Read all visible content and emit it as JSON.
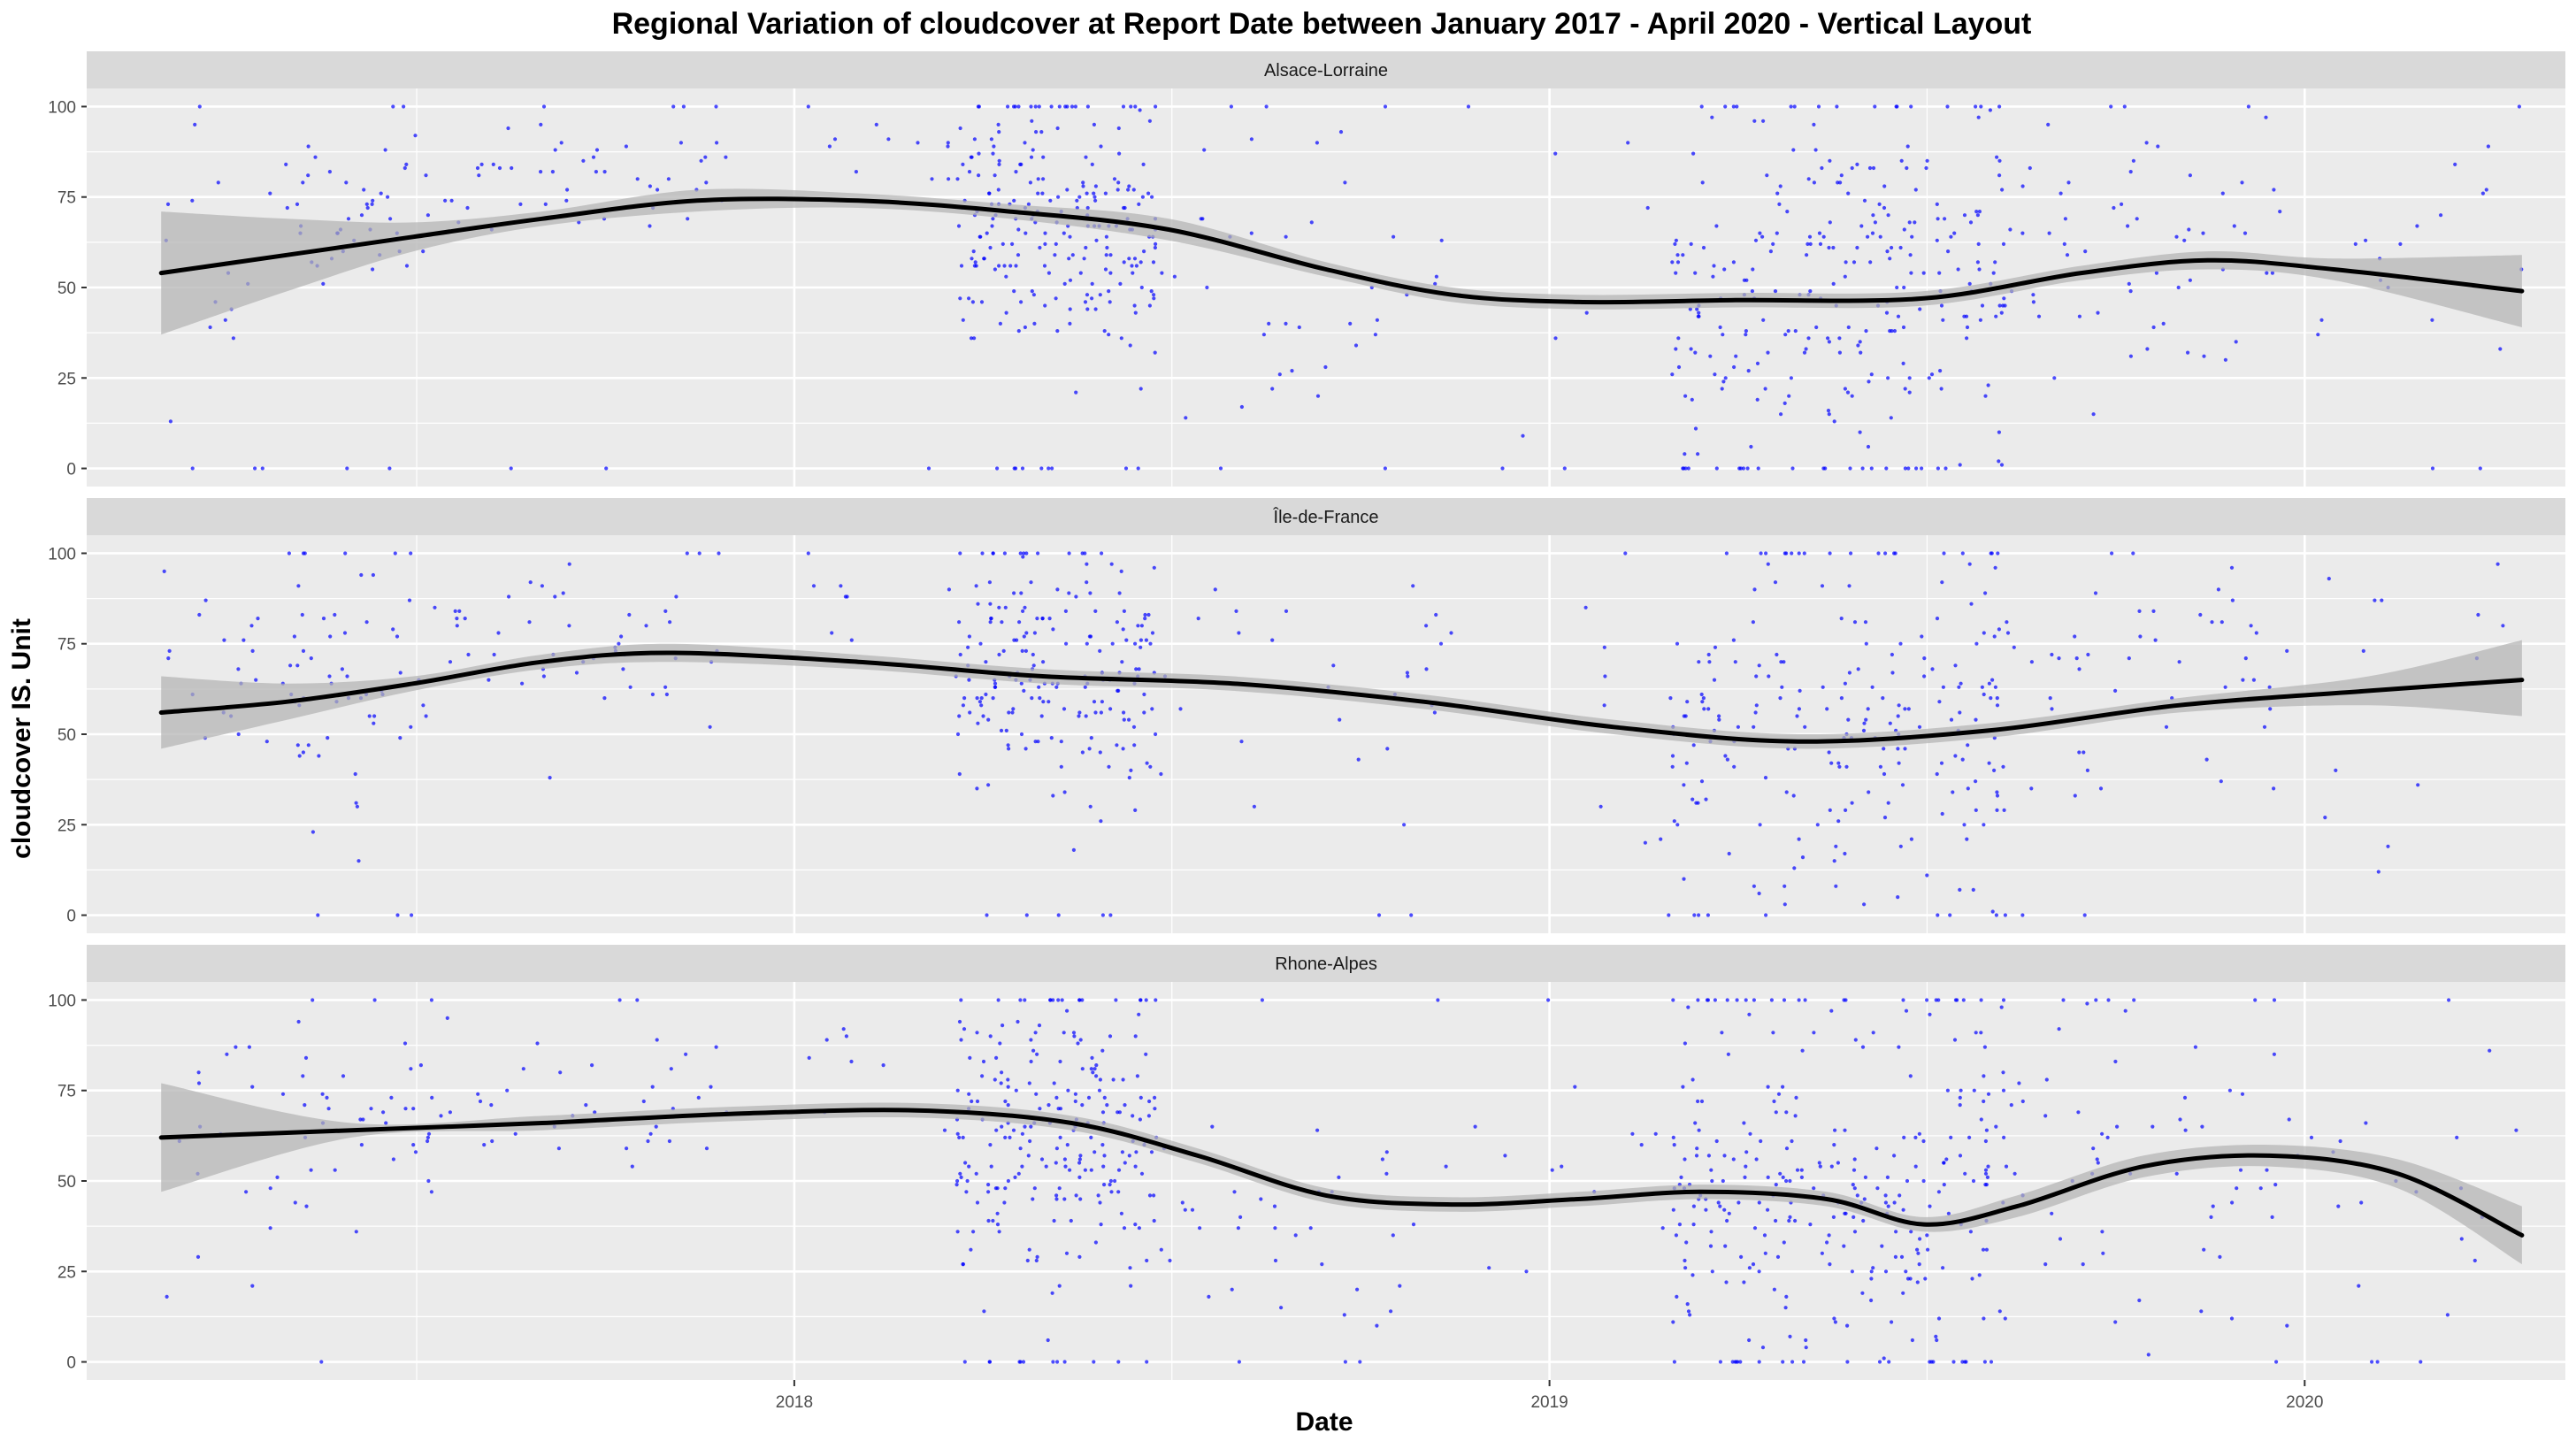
{
  "chart_data": {
    "type": "scatter",
    "title": "Regional Variation of  cloudcover  at Report Date between January 2017 - April 2020 - Vertical Layout",
    "xlabel": "Date",
    "ylabel": "cloudcover  IS. Unit",
    "xlim": [
      "2017-01-24",
      "2020-05-06"
    ],
    "ylim": [
      -5,
      105
    ],
    "x_ticks": [
      "2018-01-01",
      "2019-01-01",
      "2020-01-01"
    ],
    "x_tick_labels": [
      "2018",
      "2019",
      "2020"
    ],
    "y_ticks": [
      0,
      25,
      50,
      75,
      100
    ],
    "y_tick_labels": [
      "0",
      "25",
      "50",
      "75",
      "100"
    ],
    "grid": true,
    "legend": "none",
    "colors": {
      "points": "#0000ff",
      "smooth_line": "#000000",
      "ribbon": "#b3b3b3",
      "panel_bg": "#ebebeb",
      "strip_bg": "#d9d9d9",
      "grid": "#ffffff"
    },
    "panels": [
      {
        "name": "Alsace-Lorraine",
        "smooth": {
          "x": [
            "2017-03-01",
            "2017-05-01",
            "2017-07-01",
            "2017-09-01",
            "2017-11-15",
            "2018-02-01",
            "2018-04-15",
            "2018-07-01",
            "2018-09-15",
            "2018-11-15",
            "2019-01-15",
            "2019-04-01",
            "2019-07-01",
            "2019-09-15",
            "2019-11-15",
            "2020-01-15",
            "2020-04-15"
          ],
          "y": [
            54,
            59,
            64,
            69,
            74,
            74,
            71,
            66,
            55,
            48,
            46,
            46.5,
            47,
            54,
            57.5,
            55,
            49
          ],
          "lower": [
            37,
            49,
            60,
            67,
            71,
            72,
            69,
            63,
            53,
            46,
            44,
            44.5,
            45,
            52,
            55,
            52,
            39
          ],
          "upper": [
            71,
            69,
            68,
            71,
            77,
            76,
            73,
            69,
            57,
            50,
            48,
            48.5,
            49,
            56,
            60,
            58,
            59
          ]
        },
        "clusters": [
          {
            "start": "2017-03-01",
            "end": "2017-05-01",
            "center": 55,
            "spread": 35,
            "n": 20
          },
          {
            "start": "2017-05-01",
            "end": "2017-07-10",
            "center": 72,
            "spread": 25,
            "n": 45
          },
          {
            "start": "2017-07-10",
            "end": "2017-11-30",
            "center": 80,
            "spread": 15,
            "n": 50
          },
          {
            "start": "2018-01-01",
            "end": "2018-03-20",
            "center": 88,
            "spread": 10,
            "n": 12
          },
          {
            "start": "2018-03-20",
            "end": "2018-06-25",
            "center": 65,
            "spread": 30,
            "n": 240
          },
          {
            "start": "2018-06-25",
            "end": "2018-10-30",
            "center": 55,
            "spread": 35,
            "n": 40
          },
          {
            "start": "2018-11-01",
            "end": "2019-03-01",
            "center": 60,
            "spread": 40,
            "n": 12
          },
          {
            "start": "2019-03-01",
            "end": "2019-08-10",
            "center": 50,
            "spread": 50,
            "n": 280
          },
          {
            "start": "2019-08-10",
            "end": "2019-12-20",
            "center": 60,
            "spread": 40,
            "n": 60
          },
          {
            "start": "2019-12-20",
            "end": "2020-04-15",
            "center": 60,
            "spread": 40,
            "n": 20
          }
        ]
      },
      {
        "name": "Île-de-France",
        "smooth": {
          "x": [
            "2017-03-01",
            "2017-05-01",
            "2017-07-01",
            "2017-09-01",
            "2017-11-01",
            "2018-02-01",
            "2018-05-01",
            "2018-08-01",
            "2018-11-01",
            "2019-02-01",
            "2019-05-01",
            "2019-08-01",
            "2019-11-01",
            "2020-02-01",
            "2020-04-15"
          ],
          "y": [
            56,
            59,
            64,
            70,
            72.5,
            70,
            66,
            64,
            59,
            52,
            48,
            51,
            58,
            62,
            65
          ],
          "lower": [
            46,
            54,
            62,
            68,
            70,
            68,
            64,
            62,
            57,
            50,
            46,
            49,
            56,
            58,
            55
          ],
          "upper": [
            66,
            64,
            66,
            72,
            75,
            72,
            68,
            66,
            61,
            54,
            50,
            53,
            60,
            66,
            76
          ]
        },
        "clusters": [
          {
            "start": "2017-02-25",
            "end": "2017-05-01",
            "center": 70,
            "spread": 30,
            "n": 20
          },
          {
            "start": "2017-05-01",
            "end": "2017-07-10",
            "center": 62,
            "spread": 35,
            "n": 60
          },
          {
            "start": "2017-07-10",
            "end": "2017-11-30",
            "center": 75,
            "spread": 20,
            "n": 50
          },
          {
            "start": "2018-01-01",
            "end": "2018-03-20",
            "center": 90,
            "spread": 10,
            "n": 8
          },
          {
            "start": "2018-03-20",
            "end": "2018-06-25",
            "center": 65,
            "spread": 30,
            "n": 200
          },
          {
            "start": "2018-06-25",
            "end": "2018-11-30",
            "center": 65,
            "spread": 30,
            "n": 30
          },
          {
            "start": "2018-12-01",
            "end": "2019-03-01",
            "center": 60,
            "spread": 40,
            "n": 10
          },
          {
            "start": "2019-03-01",
            "end": "2019-08-10",
            "center": 50,
            "spread": 45,
            "n": 220
          },
          {
            "start": "2019-08-10",
            "end": "2019-12-20",
            "center": 65,
            "spread": 30,
            "n": 50
          },
          {
            "start": "2019-12-20",
            "end": "2020-04-15",
            "center": 55,
            "spread": 40,
            "n": 15
          }
        ]
      },
      {
        "name": "Rhone-Alpes",
        "smooth": {
          "x": [
            "2017-03-01",
            "2017-06-01",
            "2017-09-01",
            "2017-12-01",
            "2018-03-01",
            "2018-05-15",
            "2018-07-15",
            "2018-09-15",
            "2018-11-15",
            "2019-01-15",
            "2019-03-15",
            "2019-05-15",
            "2019-07-01",
            "2019-08-15",
            "2019-10-15",
            "2019-12-15",
            "2020-02-15",
            "2020-04-15"
          ],
          "y": [
            62,
            64,
            66,
            68.5,
            69.5,
            66,
            57,
            46,
            43.5,
            45,
            47,
            45,
            38,
            43,
            54,
            57,
            52,
            35
          ],
          "lower": [
            47,
            62,
            64,
            66.5,
            67.5,
            64,
            55,
            44,
            41.5,
            43,
            45,
            43,
            36,
            40,
            51,
            54,
            48,
            27
          ],
          "upper": [
            77,
            66,
            68,
            70.5,
            71.5,
            68,
            59,
            48,
            45.5,
            47,
            49,
            47,
            40,
            46,
            57,
            60,
            56,
            43
          ]
        },
        "clusters": [
          {
            "start": "2017-03-01",
            "end": "2017-05-01",
            "center": 60,
            "spread": 35,
            "n": 18
          },
          {
            "start": "2017-05-01",
            "end": "2017-07-10",
            "center": 65,
            "spread": 30,
            "n": 40
          },
          {
            "start": "2017-07-10",
            "end": "2017-11-30",
            "center": 70,
            "spread": 20,
            "n": 40
          },
          {
            "start": "2018-01-01",
            "end": "2018-03-20",
            "center": 85,
            "spread": 15,
            "n": 8
          },
          {
            "start": "2018-03-20",
            "end": "2018-06-25",
            "center": 60,
            "spread": 35,
            "n": 240
          },
          {
            "start": "2018-06-25",
            "end": "2018-10-30",
            "center": 40,
            "spread": 35,
            "n": 40
          },
          {
            "start": "2018-11-01",
            "end": "2019-03-01",
            "center": 45,
            "spread": 45,
            "n": 15
          },
          {
            "start": "2019-03-01",
            "end": "2019-08-10",
            "center": 45,
            "spread": 50,
            "n": 300
          },
          {
            "start": "2019-08-10",
            "end": "2019-12-20",
            "center": 55,
            "spread": 40,
            "n": 60
          },
          {
            "start": "2019-12-20",
            "end": "2020-04-15",
            "center": 40,
            "spread": 45,
            "n": 25
          }
        ]
      }
    ]
  }
}
